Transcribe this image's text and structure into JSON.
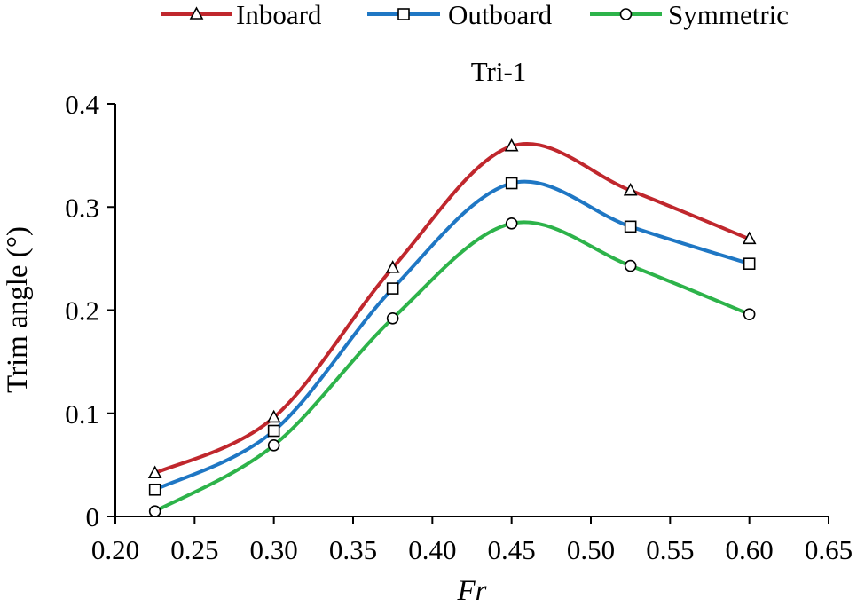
{
  "chart_data": {
    "type": "line",
    "title": "Tri-1",
    "xlabel": "Fr",
    "ylabel": "Trim angle (°)",
    "x": [
      0.225,
      0.3,
      0.375,
      0.45,
      0.525,
      0.6
    ],
    "xlim": [
      0.2,
      0.65
    ],
    "ylim": [
      0,
      0.4
    ],
    "xticks": [
      "0.20",
      "0.25",
      "0.30",
      "0.35",
      "0.40",
      "0.45",
      "0.50",
      "0.55",
      "0.60",
      "0.65"
    ],
    "yticks": [
      "0",
      "0.1",
      "0.2",
      "0.3",
      "0.4"
    ],
    "grid": false,
    "legend_position": "top",
    "series": [
      {
        "name": "Inboard",
        "color": "#c0272d",
        "marker": "triangle",
        "values": [
          0.042,
          0.096,
          0.241,
          0.359,
          0.316,
          0.269
        ]
      },
      {
        "name": "Outboard",
        "color": "#1f77c4",
        "marker": "square",
        "values": [
          0.026,
          0.083,
          0.221,
          0.323,
          0.281,
          0.245
        ]
      },
      {
        "name": "Symmetric",
        "color": "#2db34a",
        "marker": "circle",
        "values": [
          0.005,
          0.069,
          0.192,
          0.284,
          0.243,
          0.196
        ]
      }
    ]
  }
}
